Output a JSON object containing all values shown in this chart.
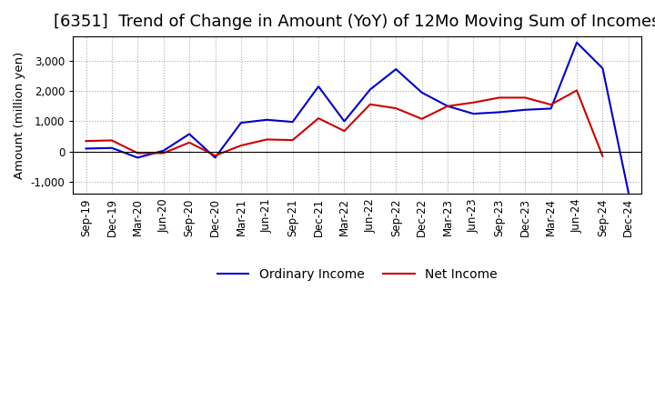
{
  "title": "[6351]  Trend of Change in Amount (YoY) of 12Mo Moving Sum of Incomes",
  "ylabel": "Amount (million yen)",
  "x_labels": [
    "Sep-19",
    "Dec-19",
    "Mar-20",
    "Jun-20",
    "Sep-20",
    "Dec-20",
    "Mar-21",
    "Jun-21",
    "Sep-21",
    "Dec-21",
    "Mar-22",
    "Jun-22",
    "Sep-22",
    "Dec-22",
    "Mar-23",
    "Jun-23",
    "Sep-23",
    "Dec-23",
    "Mar-24",
    "Jun-24",
    "Sep-24",
    "Dec-24"
  ],
  "ordinary_income": [
    100,
    120,
    -200,
    30,
    580,
    -200,
    950,
    1050,
    980,
    2150,
    1000,
    2050,
    2720,
    1950,
    1500,
    1250,
    1300,
    1380,
    1420,
    3600,
    2750,
    -1350
  ],
  "net_income": [
    350,
    370,
    -50,
    -50,
    300,
    -130,
    200,
    400,
    380,
    1100,
    680,
    1560,
    1430,
    1080,
    1500,
    1620,
    1780,
    1780,
    1550,
    2020,
    -150,
    null
  ],
  "ordinary_color": "#0000CC",
  "net_color": "#CC0000",
  "background_color": "#FFFFFF",
  "plot_bg_color": "#FFFFFF",
  "ylim": [
    -1400,
    3800
  ],
  "yticks": [
    -1000,
    0,
    1000,
    2000,
    3000
  ],
  "grid_color": "#AAAAAA",
  "legend_labels": [
    "Ordinary Income",
    "Net Income"
  ],
  "title_fontsize": 13,
  "axis_fontsize": 8.5,
  "legend_fontsize": 10
}
